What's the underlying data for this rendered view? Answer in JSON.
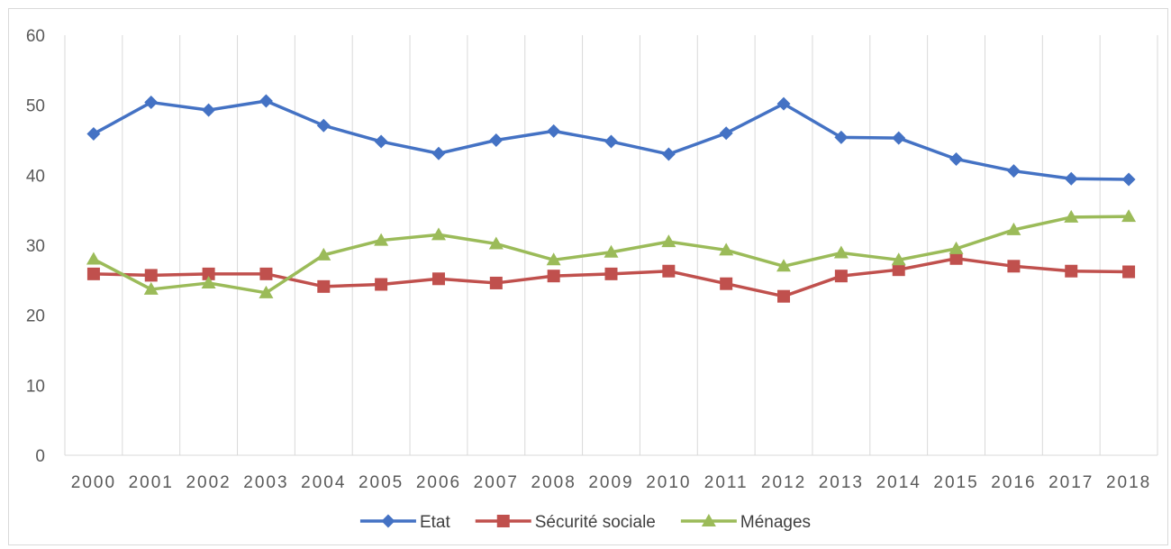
{
  "chart_data": {
    "type": "line",
    "title": "",
    "xlabel": "",
    "ylabel": "",
    "categories": [
      "2000",
      "2001",
      "2002",
      "2003",
      "2004",
      "2005",
      "2006",
      "2007",
      "2008",
      "2009",
      "2010",
      "2011",
      "2012",
      "2013",
      "2014",
      "2015",
      "2016",
      "2017",
      "2018"
    ],
    "yticks": [
      "0",
      "10",
      "20",
      "30",
      "40",
      "50",
      "60"
    ],
    "ylim": [
      0,
      60
    ],
    "grid": "vertical",
    "legend_position": "bottom",
    "series": [
      {
        "name": "Etat",
        "color": "#4472c4",
        "marker": "diamond",
        "values": [
          45.9,
          50.4,
          49.3,
          50.6,
          47.1,
          44.8,
          43.1,
          45.0,
          46.3,
          44.8,
          43.0,
          46.0,
          50.2,
          45.4,
          45.3,
          42.3,
          40.6,
          39.5,
          39.4
        ]
      },
      {
        "name": "Sécurité sociale",
        "color": "#c0504d",
        "marker": "square",
        "values": [
          25.9,
          25.7,
          25.9,
          25.9,
          24.1,
          24.4,
          25.2,
          24.6,
          25.6,
          25.9,
          26.3,
          24.5,
          22.7,
          25.6,
          26.5,
          28.1,
          27.0,
          26.3,
          26.2
        ]
      },
      {
        "name": "Ménages",
        "color": "#9bbb59",
        "marker": "triangle",
        "values": [
          28.0,
          23.7,
          24.6,
          23.2,
          28.6,
          30.7,
          31.5,
          30.2,
          27.9,
          29.0,
          30.5,
          29.3,
          27.0,
          28.9,
          27.9,
          29.5,
          32.2,
          34.0,
          34.1
        ]
      }
    ]
  }
}
